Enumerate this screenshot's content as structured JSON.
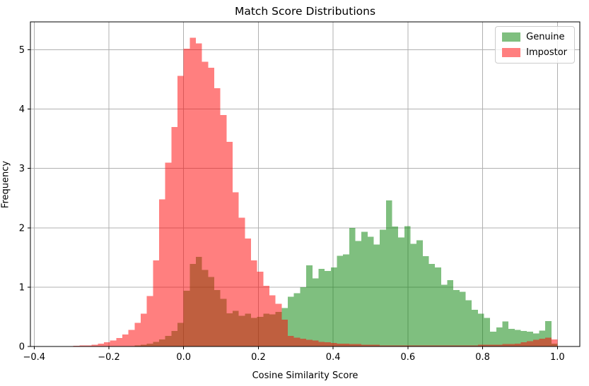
{
  "figure": {
    "background": "#ffffff"
  },
  "chart_data": {
    "type": "histogram",
    "title": "Match Score Distributions",
    "xlabel": "Cosine Similarity Score",
    "ylabel": "Frequency",
    "xlim": [
      -0.41,
      1.06
    ],
    "ylim": [
      0,
      5.47
    ],
    "xticks": {
      "values": [
        -0.4,
        -0.2,
        0.0,
        0.2,
        0.4,
        0.6,
        0.8,
        1.0
      ],
      "labels": [
        "−0.4",
        "−0.2",
        "0.0",
        "0.2",
        "0.4",
        "0.6",
        "0.8",
        "1.0"
      ]
    },
    "yticks": {
      "values": [
        0,
        1,
        2,
        3,
        4,
        5
      ],
      "labels": [
        "0",
        "1",
        "2",
        "3",
        "4",
        "5"
      ]
    },
    "grid": true,
    "grid_color": "#b0b0b0",
    "spine_color": "#000000",
    "bin_start": -0.2952,
    "bin_width": 0.0164,
    "legend": {
      "position": "upper right",
      "entries": [
        {
          "label": "Genuine"
        },
        {
          "label": "Impostor"
        }
      ]
    },
    "series": [
      {
        "name": "Genuine",
        "color": "#008000",
        "alpha": 0.5,
        "legend_swatch": "#7fbf7f",
        "heights": [
          0,
          0,
          0,
          0,
          0,
          0,
          0,
          0,
          0,
          0,
          0.02,
          0.03,
          0.05,
          0.08,
          0.12,
          0.18,
          0.26,
          0.4,
          0.94,
          1.39,
          1.51,
          1.29,
          1.17,
          0.95,
          0.8,
          0.56,
          0.6,
          0.52,
          0.55,
          0.48,
          0.5,
          0.55,
          0.54,
          0.58,
          0.65,
          0.84,
          0.9,
          1.0,
          1.37,
          1.15,
          1.31,
          1.27,
          1.33,
          1.53,
          1.55,
          2.0,
          1.78,
          1.93,
          1.85,
          1.72,
          1.97,
          2.46,
          2.02,
          1.84,
          2.03,
          1.73,
          1.79,
          1.52,
          1.39,
          1.33,
          1.04,
          1.12,
          0.95,
          0.92,
          0.78,
          0.62,
          0.55,
          0.48,
          0.25,
          0.32,
          0.42,
          0.3,
          0.28,
          0.26,
          0.25,
          0.22,
          0.27,
          0.43,
          0.05
        ]
      },
      {
        "name": "Impostor",
        "color": "#ff0000",
        "alpha": 0.5,
        "legend_swatch": "#ff7f7f",
        "heights": [
          0.01,
          0.02,
          0.02,
          0.03,
          0.05,
          0.07,
          0.1,
          0.14,
          0.2,
          0.28,
          0.4,
          0.55,
          0.85,
          1.45,
          2.48,
          3.1,
          3.7,
          4.56,
          5.02,
          5.2,
          5.11,
          4.8,
          4.7,
          4.35,
          3.9,
          3.45,
          2.6,
          2.17,
          1.82,
          1.45,
          1.26,
          1.02,
          0.86,
          0.72,
          0.45,
          0.18,
          0.15,
          0.13,
          0.11,
          0.1,
          0.08,
          0.07,
          0.06,
          0.05,
          0.05,
          0.04,
          0.04,
          0.03,
          0.03,
          0.03,
          0.02,
          0.02,
          0.02,
          0.02,
          0.02,
          0.02,
          0.02,
          0.02,
          0.02,
          0.02,
          0.02,
          0.02,
          0.02,
          0.02,
          0.02,
          0.02,
          0.03,
          0.03,
          0.03,
          0.03,
          0.04,
          0.04,
          0.05,
          0.07,
          0.09,
          0.11,
          0.13,
          0.15,
          0.12
        ]
      }
    ]
  }
}
